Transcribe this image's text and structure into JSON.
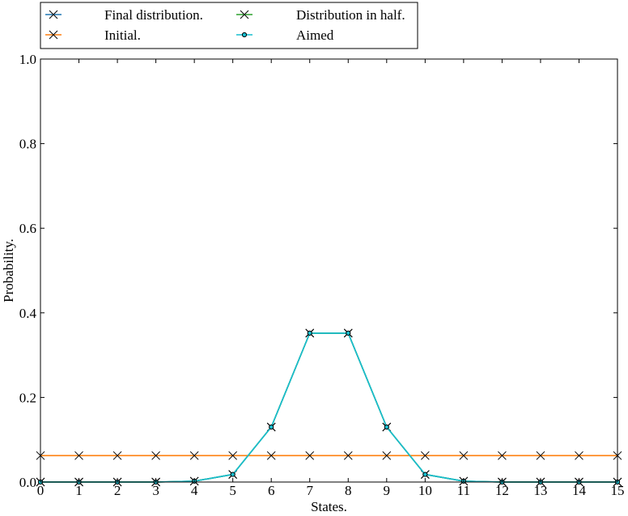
{
  "chart_data": {
    "type": "line",
    "title": "",
    "xlabel": "States.",
    "ylabel": "Probability.",
    "xlim": [
      0,
      15
    ],
    "ylim": [
      0,
      1.0
    ],
    "x": [
      0,
      1,
      2,
      3,
      4,
      5,
      6,
      7,
      8,
      9,
      10,
      11,
      12,
      13,
      14,
      15
    ],
    "xticks": [
      "0",
      "1",
      "2",
      "3",
      "4",
      "5",
      "6",
      "7",
      "8",
      "9",
      "10",
      "11",
      "12",
      "13",
      "14",
      "15"
    ],
    "yticks": [
      "0.0",
      "0.2",
      "0.4",
      "0.6",
      "0.8",
      "1.0"
    ],
    "ytick_values": [
      0,
      0.2,
      0.4,
      0.6,
      0.8,
      1.0
    ],
    "grid": false,
    "legend_placement": "top-left, above plot",
    "series": [
      {
        "name": "Final distribution.",
        "color": "#1f77b4",
        "marker": "x",
        "values": [
          0,
          0,
          0,
          0,
          0.002,
          0.018,
          0.13,
          0.352,
          0.352,
          0.13,
          0.018,
          0.002,
          0,
          0,
          0,
          0
        ]
      },
      {
        "name": "Initial.",
        "color": "#ff7f0e",
        "marker": "x",
        "values": [
          0.0625,
          0.0625,
          0.0625,
          0.0625,
          0.0625,
          0.0625,
          0.0625,
          0.0625,
          0.0625,
          0.0625,
          0.0625,
          0.0625,
          0.0625,
          0.0625,
          0.0625,
          0.0625
        ]
      },
      {
        "name": "Distribution in half.",
        "color": "#2ca02c",
        "marker": "x",
        "values": [
          0,
          0,
          0,
          0,
          0.002,
          0.018,
          0.13,
          0.352,
          0.352,
          0.13,
          0.018,
          0.002,
          0,
          0,
          0,
          0
        ]
      },
      {
        "name": "Aimed",
        "color": "#17becf",
        "marker": "o",
        "values": [
          0,
          0,
          0,
          0,
          0.002,
          0.018,
          0.13,
          0.352,
          0.352,
          0.13,
          0.018,
          0.002,
          0,
          0,
          0,
          0
        ]
      }
    ]
  }
}
